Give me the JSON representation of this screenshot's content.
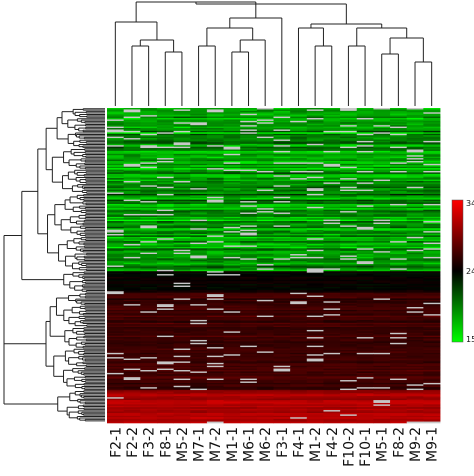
{
  "chart_data": {
    "type": "heatmap",
    "title": "",
    "xlabel": "",
    "ylabel": "",
    "columns": [
      "F2-1",
      "F2-2",
      "F3-2",
      "F8-1",
      "M5-2",
      "M7-1",
      "M7-2",
      "M1-1",
      "M6-1",
      "M6-2",
      "F3-1",
      "F4-1",
      "M1-2",
      "F4-2",
      "F10-2",
      "F10-1",
      "M5-1",
      "F8-2",
      "M9-2",
      "M9-1"
    ],
    "row_count": 220,
    "column_dendrogram": true,
    "row_dendrogram": true,
    "row_blocks": [
      {
        "block": "upper",
        "row_fraction": 0.52,
        "mean_value": 18.5,
        "spread": 2.5,
        "missing_rate": 0.09
      },
      {
        "block": "mid",
        "row_fraction": 0.07,
        "mean_value": 24.0,
        "spread": 0.8,
        "missing_rate": 0.03
      },
      {
        "block": "lower",
        "row_fraction": 0.31,
        "mean_value": 26.5,
        "spread": 1.0,
        "missing_rate": 0.05
      },
      {
        "block": "bottom",
        "row_fraction": 0.1,
        "mean_value": 31.0,
        "spread": 1.2,
        "missing_rate": 0.02
      }
    ],
    "missing_color": "#c8c8c8",
    "color_scale": {
      "ticks": [
        34,
        24,
        15
      ],
      "min": 15,
      "mid": 24,
      "max": 34,
      "colors": {
        "low": "#00ff00",
        "mid": "#000000",
        "high": "#ff0000"
      }
    }
  }
}
